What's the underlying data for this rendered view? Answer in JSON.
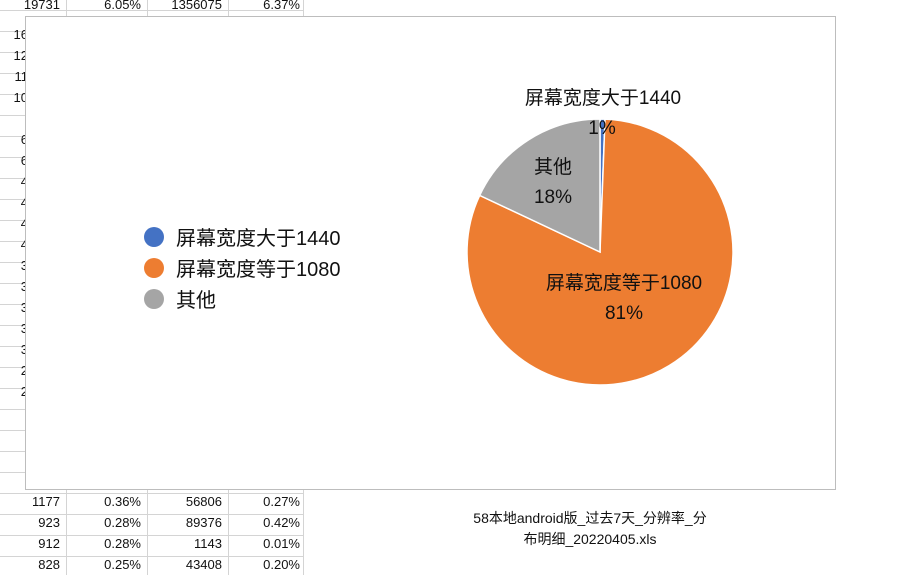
{
  "spreadsheet": {
    "top_row": [
      "19731",
      "6.05%",
      "1356075",
      "6.37%"
    ],
    "left_stubs": [
      "16",
      "12",
      "11",
      "10",
      "",
      "6",
      "6",
      "4",
      "4",
      "4",
      "4",
      "3",
      "3",
      "3",
      "3",
      "3",
      "2",
      "2",
      "",
      "",
      "",
      ""
    ],
    "bottom_rows": [
      [
        "1177",
        "0.36%",
        "56806",
        "0.27%"
      ],
      [
        "923",
        "0.28%",
        "89376",
        "0.42%"
      ],
      [
        "912",
        "0.28%",
        "1143",
        "0.01%"
      ],
      [
        "828",
        "0.25%",
        "43408",
        "0.20%"
      ]
    ]
  },
  "chart_data": {
    "type": "pie",
    "title": "",
    "legend_position": "left",
    "slices": [
      {
        "label": "屏幕宽度大于1440",
        "percent_label": "1%",
        "value": 0.6,
        "color": "#4472C4"
      },
      {
        "label": "屏幕宽度等于1080",
        "percent_label": "81%",
        "value": 81.4,
        "color": "#ED7D31"
      },
      {
        "label": "其他",
        "percent_label": "18%",
        "value": 18.0,
        "color": "#A5A5A5"
      }
    ]
  },
  "file": {
    "name_line1": "58本地android版_过去7天_分辨率_分",
    "name_line2": "布明细_20220405.xls"
  }
}
